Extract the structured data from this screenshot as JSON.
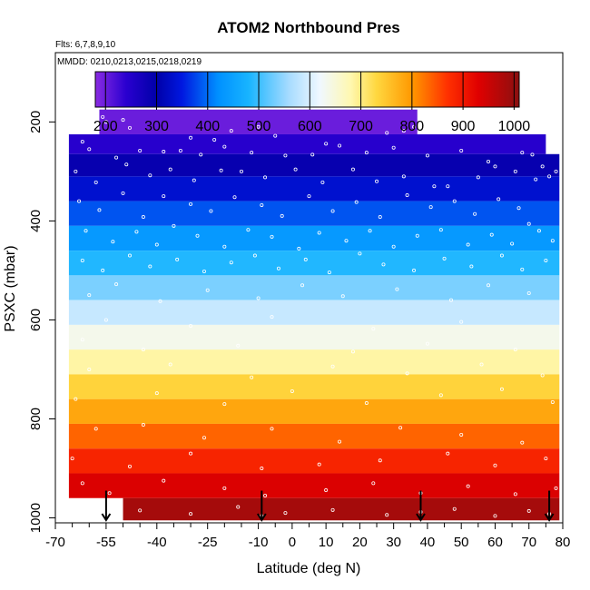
{
  "chart_data": {
    "type": "heatmap",
    "title": "ATOM2 Northbound Pres",
    "flights_label": "Flts: 6,7,8,9,10",
    "dates_label": "MMDD: 0210,0213,0215,0218,0219",
    "xlabel": "Latitude (deg N)",
    "ylabel": "PSXC (mbar)",
    "xlim": [
      -70,
      80
    ],
    "ylim": [
      1010,
      60
    ],
    "y_reversed": true,
    "x_ticks_labeled": [
      -70,
      -55,
      -40,
      -25,
      -10,
      0,
      10,
      20,
      30,
      40,
      50,
      60,
      70,
      80
    ],
    "x_tick_labels": [
      "-70",
      "-55",
      "-40",
      "-25",
      "-10",
      "0",
      "10",
      "20",
      "30",
      "40",
      "50",
      "60",
      "70",
      "80"
    ],
    "x_minor_ticks": [
      -65,
      -60,
      -50,
      -45,
      -35,
      -30,
      -20,
      -15,
      -5,
      5,
      15,
      25,
      35,
      45,
      55,
      65,
      75
    ],
    "y_ticks": [
      200,
      400,
      600,
      800,
      1000
    ],
    "y_tick_labels": [
      "200",
      "400",
      "600",
      "800",
      "1000"
    ],
    "colorbar": {
      "range": [
        180,
        1010
      ],
      "ticks": [
        200,
        300,
        400,
        500,
        600,
        700,
        800,
        900,
        1000
      ],
      "tick_labels": [
        "200",
        "300",
        "400",
        "500",
        "600",
        "700",
        "800",
        "900",
        "1000"
      ],
      "stops": [
        {
          "v": 180,
          "c": "#8a2be2"
        },
        {
          "v": 240,
          "c": "#2a00d0"
        },
        {
          "v": 300,
          "c": "#0000a8"
        },
        {
          "v": 350,
          "c": "#0018e0"
        },
        {
          "v": 420,
          "c": "#0090ff"
        },
        {
          "v": 480,
          "c": "#18b4ff"
        },
        {
          "v": 560,
          "c": "#a8dcff"
        },
        {
          "v": 620,
          "c": "#f0f8ff"
        },
        {
          "v": 680,
          "c": "#fff8b0"
        },
        {
          "v": 730,
          "c": "#ffd840"
        },
        {
          "v": 800,
          "c": "#ff9800"
        },
        {
          "v": 870,
          "c": "#ff3000"
        },
        {
          "v": 930,
          "c": "#e00000"
        },
        {
          "v": 1010,
          "c": "#8a1010"
        }
      ]
    },
    "bands": [
      {
        "p_top": 175,
        "p_bot": 225,
        "value": 200,
        "lat_start": -57,
        "lat_end": 37
      },
      {
        "p_top": 225,
        "p_bot": 265,
        "value": 245,
        "lat_start": -66,
        "lat_end": 75
      },
      {
        "p_top": 265,
        "p_bot": 310,
        "value": 290,
        "lat_start": -66,
        "lat_end": 79
      },
      {
        "p_top": 310,
        "p_bot": 360,
        "value": 335,
        "lat_start": -66,
        "lat_end": 79
      },
      {
        "p_top": 360,
        "p_bot": 410,
        "value": 385,
        "lat_start": -66,
        "lat_end": 79
      },
      {
        "p_top": 410,
        "p_bot": 460,
        "value": 435,
        "lat_start": -66,
        "lat_end": 79
      },
      {
        "p_top": 460,
        "p_bot": 510,
        "value": 485,
        "lat_start": -66,
        "lat_end": 79
      },
      {
        "p_top": 510,
        "p_bot": 560,
        "value": 535,
        "lat_start": -66,
        "lat_end": 79
      },
      {
        "p_top": 560,
        "p_bot": 610,
        "value": 585,
        "lat_start": -66,
        "lat_end": 79
      },
      {
        "p_top": 610,
        "p_bot": 660,
        "value": 635,
        "lat_start": -66,
        "lat_end": 79
      },
      {
        "p_top": 660,
        "p_bot": 710,
        "value": 685,
        "lat_start": -66,
        "lat_end": 79
      },
      {
        "p_top": 710,
        "p_bot": 760,
        "value": 735,
        "lat_start": -66,
        "lat_end": 79
      },
      {
        "p_top": 760,
        "p_bot": 810,
        "value": 785,
        "lat_start": -66,
        "lat_end": 79
      },
      {
        "p_top": 810,
        "p_bot": 860,
        "value": 835,
        "lat_start": -66,
        "lat_end": 79
      },
      {
        "p_top": 860,
        "p_bot": 910,
        "value": 885,
        "lat_start": -66,
        "lat_end": 79
      },
      {
        "p_top": 910,
        "p_bot": 960,
        "value": 935,
        "lat_start": -66,
        "lat_end": 79
      },
      {
        "p_top": 960,
        "p_bot": 1005,
        "value": 985,
        "lat_start": -50,
        "lat_end": 79
      }
    ],
    "profile_arrows_lat": [
      -55,
      -9,
      38,
      76
    ],
    "sample_points": [
      [
        -56,
        190
      ],
      [
        -55,
        200
      ],
      [
        -50,
        196
      ],
      [
        -48,
        212
      ],
      [
        -30,
        232
      ],
      [
        -23,
        236
      ],
      [
        -18,
        218
      ],
      [
        -10,
        210
      ],
      [
        -5,
        228
      ],
      [
        10,
        244
      ],
      [
        28,
        222
      ],
      [
        33,
        218
      ],
      [
        36,
        210
      ],
      [
        -62,
        240
      ],
      [
        -60,
        255
      ],
      [
        -52,
        272
      ],
      [
        -45,
        258
      ],
      [
        -38,
        260
      ],
      [
        -33,
        258
      ],
      [
        -27,
        266
      ],
      [
        -20,
        250
      ],
      [
        -12,
        262
      ],
      [
        -2,
        268
      ],
      [
        6,
        266
      ],
      [
        14,
        248
      ],
      [
        22,
        262
      ],
      [
        30,
        252
      ],
      [
        40,
        268
      ],
      [
        50,
        258
      ],
      [
        58,
        280
      ],
      [
        68,
        262
      ],
      [
        71,
        266
      ],
      [
        74,
        290
      ],
      [
        76,
        310
      ],
      [
        -64,
        300
      ],
      [
        -58,
        322
      ],
      [
        -49,
        286
      ],
      [
        -42,
        308
      ],
      [
        -36,
        296
      ],
      [
        -29,
        318
      ],
      [
        -21,
        298
      ],
      [
        -15,
        300
      ],
      [
        -8,
        312
      ],
      [
        1,
        296
      ],
      [
        9,
        322
      ],
      [
        18,
        296
      ],
      [
        25,
        320
      ],
      [
        33,
        310
      ],
      [
        42,
        330
      ],
      [
        46,
        330
      ],
      [
        55,
        312
      ],
      [
        60,
        290
      ],
      [
        66,
        300
      ],
      [
        72,
        316
      ],
      [
        78,
        300
      ],
      [
        -63,
        360
      ],
      [
        -57,
        378
      ],
      [
        -50,
        344
      ],
      [
        -44,
        392
      ],
      [
        -38,
        350
      ],
      [
        -30,
        366
      ],
      [
        -24,
        380
      ],
      [
        -17,
        352
      ],
      [
        -9,
        368
      ],
      [
        -3,
        390
      ],
      [
        5,
        350
      ],
      [
        12,
        380
      ],
      [
        19,
        362
      ],
      [
        26,
        392
      ],
      [
        34,
        348
      ],
      [
        41,
        372
      ],
      [
        48,
        360
      ],
      [
        54,
        386
      ],
      [
        61,
        356
      ],
      [
        67,
        374
      ],
      [
        70,
        406
      ],
      [
        -61,
        420
      ],
      [
        -53,
        442
      ],
      [
        -46,
        422
      ],
      [
        -40,
        448
      ],
      [
        -35,
        410
      ],
      [
        -28,
        430
      ],
      [
        -20,
        452
      ],
      [
        -13,
        418
      ],
      [
        -6,
        432
      ],
      [
        2,
        456
      ],
      [
        8,
        424
      ],
      [
        16,
        440
      ],
      [
        23,
        420
      ],
      [
        30,
        452
      ],
      [
        37,
        430
      ],
      [
        44,
        418
      ],
      [
        52,
        448
      ],
      [
        59,
        428
      ],
      [
        65,
        446
      ],
      [
        73,
        420
      ],
      [
        77,
        440
      ],
      [
        -62,
        480
      ],
      [
        -56,
        500
      ],
      [
        -48,
        470
      ],
      [
        -42,
        492
      ],
      [
        -34,
        478
      ],
      [
        -26,
        502
      ],
      [
        -18,
        484
      ],
      [
        -11,
        470
      ],
      [
        -4,
        496
      ],
      [
        4,
        478
      ],
      [
        11,
        504
      ],
      [
        20,
        466
      ],
      [
        27,
        488
      ],
      [
        36,
        500
      ],
      [
        45,
        476
      ],
      [
        53,
        492
      ],
      [
        62,
        470
      ],
      [
        68,
        498
      ],
      [
        75,
        480
      ],
      [
        -60,
        550
      ],
      [
        -52,
        528
      ],
      [
        -39,
        562
      ],
      [
        -25,
        540
      ],
      [
        -10,
        556
      ],
      [
        3,
        530
      ],
      [
        15,
        552
      ],
      [
        31,
        538
      ],
      [
        47,
        560
      ],
      [
        58,
        530
      ],
      [
        70,
        546
      ],
      [
        -55,
        600
      ],
      [
        -30,
        612
      ],
      [
        -6,
        594
      ],
      [
        24,
        618
      ],
      [
        50,
        604
      ],
      [
        -62,
        640
      ],
      [
        -44,
        660
      ],
      [
        -16,
        652
      ],
      [
        18,
        664
      ],
      [
        40,
        648
      ],
      [
        66,
        660
      ],
      [
        -60,
        700
      ],
      [
        -36,
        690
      ],
      [
        -12,
        716
      ],
      [
        12,
        694
      ],
      [
        34,
        708
      ],
      [
        56,
        690
      ],
      [
        74,
        712
      ],
      [
        -64,
        760
      ],
      [
        -40,
        748
      ],
      [
        -20,
        770
      ],
      [
        0,
        744
      ],
      [
        22,
        768
      ],
      [
        44,
        752
      ],
      [
        62,
        740
      ],
      [
        77,
        766
      ],
      [
        -58,
        820
      ],
      [
        -44,
        812
      ],
      [
        -26,
        838
      ],
      [
        -6,
        820
      ],
      [
        14,
        846
      ],
      [
        32,
        818
      ],
      [
        50,
        832
      ],
      [
        68,
        848
      ],
      [
        -65,
        880
      ],
      [
        -48,
        896
      ],
      [
        -30,
        870
      ],
      [
        -9,
        900
      ],
      [
        8,
        892
      ],
      [
        26,
        884
      ],
      [
        46,
        870
      ],
      [
        60,
        894
      ],
      [
        75,
        880
      ],
      [
        -62,
        930
      ],
      [
        -54,
        950
      ],
      [
        -38,
        925
      ],
      [
        -20,
        940
      ],
      [
        -8,
        955
      ],
      [
        10,
        944
      ],
      [
        24,
        930
      ],
      [
        38,
        950
      ],
      [
        52,
        936
      ],
      [
        66,
        952
      ],
      [
        78,
        940
      ],
      [
        -45,
        985
      ],
      [
        -30,
        992
      ],
      [
        -16,
        978
      ],
      [
        -9,
        996
      ],
      [
        -2,
        990
      ],
      [
        12,
        984
      ],
      [
        28,
        994
      ],
      [
        38,
        988
      ],
      [
        48,
        982
      ],
      [
        60,
        996
      ],
      [
        70,
        986
      ],
      [
        76,
        992
      ]
    ]
  }
}
